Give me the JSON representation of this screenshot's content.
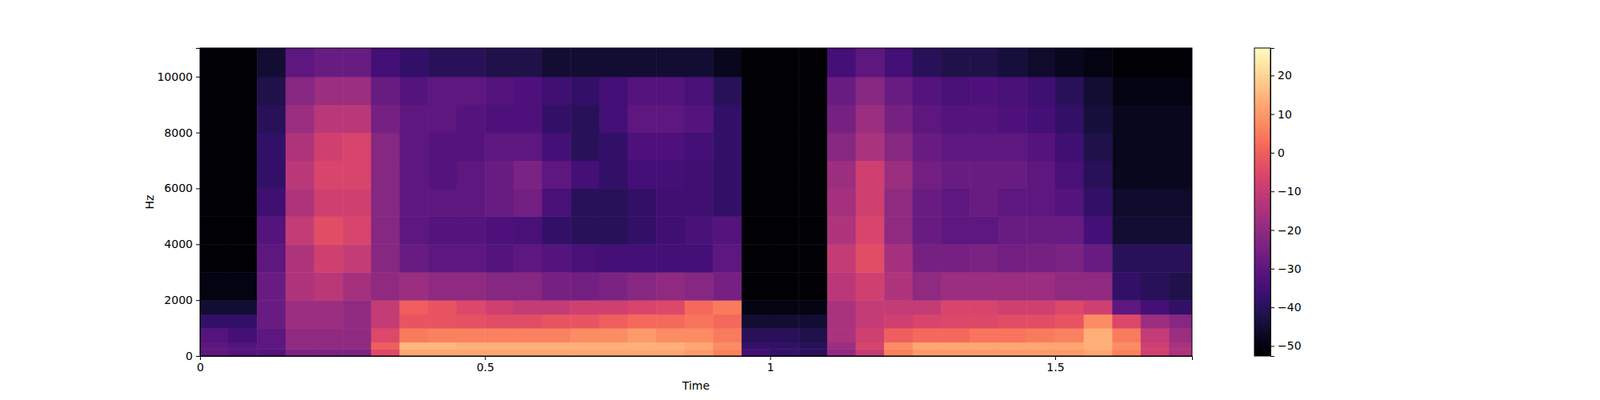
{
  "chart_data": {
    "type": "heatmap",
    "x_label": "Time",
    "y_label": "Hz",
    "xlim": [
      0,
      1.74
    ],
    "ylim": [
      0,
      11025
    ],
    "xticks": [
      0,
      0.5,
      1,
      1.5
    ],
    "yticks": [
      0,
      2000,
      4000,
      6000,
      8000,
      10000
    ],
    "color": "magma",
    "time_bins": [
      0,
      0.05,
      0.1,
      0.15,
      0.2,
      0.25,
      0.3,
      0.35,
      0.4,
      0.45,
      0.5,
      0.55,
      0.6,
      0.65,
      0.7,
      0.75,
      0.8,
      0.85,
      0.9,
      0.95,
      1,
      1.05,
      1.1,
      1.15,
      1.2,
      1.25,
      1.3,
      1.35,
      1.4,
      1.45,
      1.5,
      1.55,
      1.6,
      1.65,
      1.7,
      1.74
    ],
    "freq_bins": [
      0,
      250,
      500,
      1000,
      1500,
      2000,
      3000,
      4000,
      5000,
      6000,
      7000,
      8000,
      9000,
      10000,
      11025
    ],
    "cells": [
      [
        -30,
        -32,
        -32,
        -24,
        -24,
        -24,
        -5,
        12,
        12,
        12,
        12,
        12,
        12,
        12,
        12,
        12,
        12,
        10,
        6,
        -35,
        -38,
        -40,
        -20,
        -10,
        6,
        10,
        10,
        10,
        10,
        10,
        10,
        12,
        6,
        -8,
        -15
      ],
      [
        -30,
        -32,
        -30,
        -20,
        -20,
        -20,
        0,
        15,
        15,
        14,
        14,
        14,
        14,
        14,
        14,
        14,
        14,
        12,
        8,
        -38,
        -38,
        -40,
        -18,
        -6,
        8,
        12,
        12,
        12,
        12,
        12,
        12,
        14,
        8,
        -8,
        -15
      ],
      [
        -32,
        -35,
        -30,
        -20,
        -20,
        -20,
        -5,
        5,
        6,
        6,
        6,
        6,
        6,
        8,
        8,
        10,
        8,
        8,
        5,
        -40,
        -40,
        -42,
        -15,
        -8,
        0,
        2,
        2,
        4,
        4,
        5,
        6,
        14,
        5,
        -10,
        -18
      ],
      [
        -38,
        -38,
        -28,
        -18,
        -18,
        -20,
        -10,
        -2,
        -2,
        -3,
        -4,
        -4,
        -2,
        -2,
        0,
        2,
        2,
        4,
        2,
        -45,
        -45,
        -45,
        -15,
        -10,
        -8,
        -6,
        -5,
        -5,
        -4,
        -4,
        -2,
        8,
        -5,
        -18,
        -22
      ],
      [
        -45,
        -45,
        -28,
        -18,
        -18,
        -20,
        -10,
        0,
        -2,
        -5,
        -8,
        -10,
        -10,
        -8,
        -8,
        -6,
        -5,
        2,
        5,
        -50,
        -50,
        -50,
        -15,
        -10,
        -10,
        -10,
        -6,
        -6,
        -8,
        -8,
        -5,
        -8,
        -30,
        -35,
        -38
      ],
      [
        -50,
        -50,
        -28,
        -14,
        -12,
        -16,
        -20,
        -18,
        -20,
        -20,
        -22,
        -22,
        -25,
        -26,
        -24,
        -22,
        -20,
        -22,
        -25,
        -52,
        -52,
        -52,
        -12,
        -8,
        -14,
        -20,
        -18,
        -18,
        -18,
        -18,
        -20,
        -20,
        -38,
        -40,
        -42
      ],
      [
        -52,
        -52,
        -30,
        -14,
        -8,
        -10,
        -22,
        -28,
        -30,
        -30,
        -32,
        -30,
        -32,
        -34,
        -35,
        -35,
        -35,
        -35,
        -30,
        -52,
        -52,
        -52,
        -10,
        -4,
        -16,
        -25,
        -25,
        -24,
        -26,
        -25,
        -24,
        -28,
        -40,
        -40,
        -40
      ],
      [
        -52,
        -52,
        -32,
        -10,
        -4,
        -6,
        -22,
        -30,
        -32,
        -32,
        -33,
        -34,
        -38,
        -40,
        -40,
        -38,
        -36,
        -34,
        -32,
        -52,
        -52,
        -52,
        -14,
        -6,
        -20,
        -28,
        -30,
        -30,
        -28,
        -28,
        -28,
        -35,
        -45,
        -45,
        -45
      ],
      [
        -52,
        -52,
        -36,
        -14,
        -8,
        -8,
        -22,
        -30,
        -30,
        -30,
        -28,
        -26,
        -34,
        -40,
        -40,
        -38,
        -36,
        -36,
        -38,
        -52,
        -52,
        -52,
        -16,
        -8,
        -20,
        -28,
        -30,
        -28,
        -30,
        -30,
        -32,
        -38,
        -46,
        -46,
        -46
      ],
      [
        -52,
        -52,
        -38,
        -12,
        -6,
        -6,
        -22,
        -30,
        -32,
        -30,
        -28,
        -24,
        -30,
        -35,
        -38,
        -35,
        -35,
        -36,
        -38,
        -52,
        -52,
        -52,
        -18,
        -8,
        -18,
        -26,
        -28,
        -28,
        -28,
        -30,
        -34,
        -40,
        -48,
        -48,
        -48
      ],
      [
        -52,
        -52,
        -38,
        -14,
        -8,
        -6,
        -22,
        -30,
        -32,
        -32,
        -30,
        -30,
        -35,
        -40,
        -38,
        -33,
        -33,
        -35,
        -38,
        -52,
        -52,
        -52,
        -22,
        -15,
        -22,
        -28,
        -30,
        -30,
        -30,
        -32,
        -36,
        -42,
        -48,
        -48,
        -48
      ],
      [
        -52,
        -52,
        -40,
        -18,
        -12,
        -12,
        -25,
        -30,
        -30,
        -32,
        -33,
        -33,
        -38,
        -40,
        -35,
        -30,
        -30,
        -32,
        -38,
        -52,
        -52,
        -52,
        -25,
        -18,
        -25,
        -30,
        -32,
        -32,
        -33,
        -35,
        -38,
        -44,
        -48,
        -48,
        -48
      ],
      [
        -52,
        -52,
        -42,
        -22,
        -18,
        -18,
        -28,
        -32,
        -30,
        -30,
        -32,
        -33,
        -36,
        -38,
        -35,
        -32,
        -32,
        -34,
        -40,
        -52,
        -52,
        -52,
        -28,
        -22,
        -28,
        -32,
        -34,
        -33,
        -34,
        -36,
        -40,
        -45,
        -50,
        -50,
        -50
      ],
      [
        -52,
        -52,
        -45,
        -30,
        -28,
        -28,
        -35,
        -38,
        -40,
        -40,
        -42,
        -42,
        -45,
        -45,
        -45,
        -45,
        -45,
        -45,
        -48,
        -52,
        -52,
        -52,
        -35,
        -30,
        -35,
        -40,
        -42,
        -42,
        -44,
        -46,
        -48,
        -50,
        -52,
        -52,
        -52
      ]
    ],
    "colorbar_range": [
      -52.6,
      27.1
    ],
    "colorbar_ticks": [
      {
        "value": -50,
        "label": "−50"
      },
      {
        "value": -40,
        "label": "−40"
      },
      {
        "value": -30,
        "label": "−30"
      },
      {
        "value": -20,
        "label": "−20"
      },
      {
        "value": -10,
        "label": "−10"
      },
      0,
      10,
      20
    ]
  }
}
